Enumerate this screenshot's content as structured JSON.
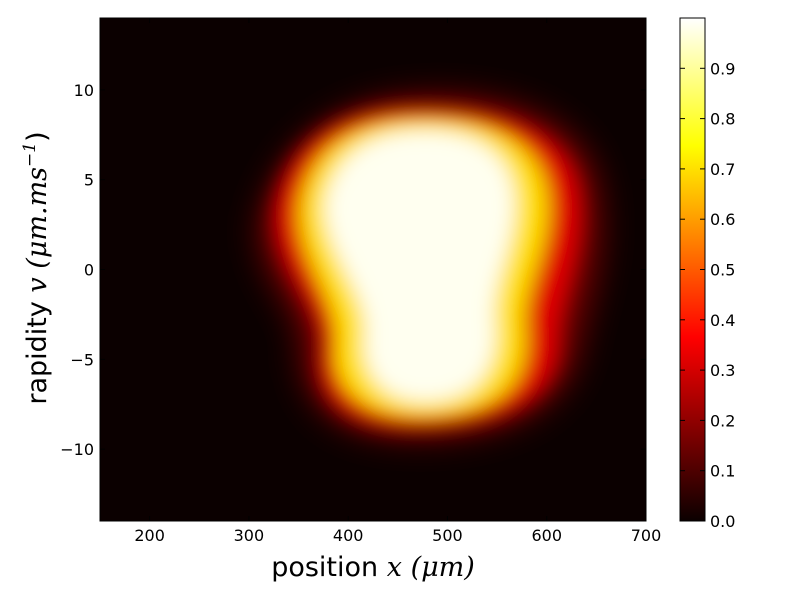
{
  "chart_data": {
    "type": "heatmap",
    "title": "",
    "xlabel": {
      "prefix": "position ",
      "var": "x",
      "unit": "(μm)"
    },
    "ylabel": {
      "prefix": "rapidity ",
      "var": "v",
      "unit": "(μm.ms",
      "unit_exp": "−1",
      "unit_close": ")"
    },
    "xlim": [
      150,
      700
    ],
    "ylim": [
      -14,
      14
    ],
    "xticks": [
      200,
      300,
      400,
      500,
      600,
      700
    ],
    "yticks": [
      -10,
      -5,
      0,
      5,
      10
    ],
    "ytick_labels": [
      "−10",
      "−5",
      "0",
      "5",
      "10"
    ],
    "colormap": "hot",
    "colorbar": {
      "range": [
        0.0,
        1.0
      ],
      "ticks": [
        0.0,
        0.1,
        0.2,
        0.3,
        0.4,
        0.5,
        0.6,
        0.7,
        0.8,
        0.9
      ],
      "tick_labels": [
        "0.0",
        "0.1",
        "0.2",
        "0.3",
        "0.4",
        "0.5",
        "0.6",
        "0.7",
        "0.8",
        "0.9"
      ]
    },
    "grid": false,
    "density_ridge": [
      {
        "v": -8.5,
        "x": 460,
        "halfwidth": 65,
        "value": 0.9
      },
      {
        "v": -6.0,
        "x": 475,
        "halfwidth": 75,
        "value": 1.0
      },
      {
        "v": -3.0,
        "x": 450,
        "halfwidth": 65,
        "value": 1.0
      },
      {
        "v": 0.0,
        "x": 420,
        "halfwidth": 55,
        "value": 1.0
      },
      {
        "v": 3.0,
        "x": 430,
        "halfwidth": 75,
        "value": 1.0
      },
      {
        "v": 6.0,
        "x": 450,
        "halfwidth": 70,
        "value": 1.0
      },
      {
        "v": 8.0,
        "x": 455,
        "halfwidth": 60,
        "value": 0.9
      }
    ]
  }
}
